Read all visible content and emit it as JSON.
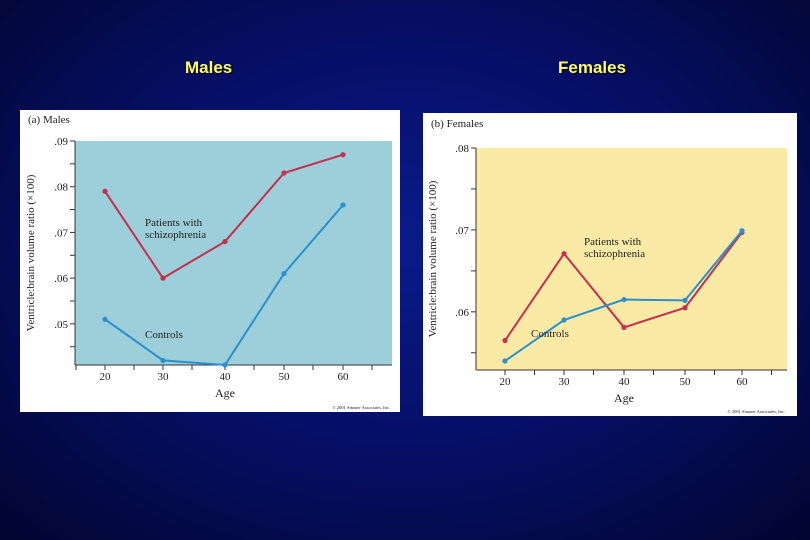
{
  "slide": {
    "left_title": "Males",
    "right_title": "Females"
  },
  "chart_data": [
    {
      "type": "line",
      "panel_label": "(a) Males",
      "title": "Males",
      "xlabel": "Age",
      "ylabel": "Ventricle:brain volume ratio (×100)",
      "x": [
        20,
        30,
        40,
        50,
        60
      ],
      "x_ticks": [
        "20",
        "30",
        "40",
        "50",
        "60"
      ],
      "y_ticks": [
        ".05",
        ".06",
        ".07",
        ".08",
        ".09"
      ],
      "xlim": [
        15,
        70
      ],
      "ylim": [
        0.041,
        0.09
      ],
      "background": "#9ccfd9",
      "series": [
        {
          "name": "Patients with schizophrenia",
          "color": "#c4304d",
          "values": [
            0.079,
            0.06,
            0.068,
            0.083,
            0.087
          ]
        },
        {
          "name": "Controls",
          "color": "#2990cf",
          "values": [
            0.051,
            0.042,
            0.041,
            0.061,
            0.076
          ]
        }
      ],
      "copyright": "© 2001 Sinauer Associates, Inc."
    },
    {
      "type": "line",
      "panel_label": "(b) Females",
      "title": "Females",
      "xlabel": "Age",
      "ylabel": "Ventricle:brain volume ratio (×100)",
      "x": [
        20,
        30,
        40,
        50,
        60
      ],
      "x_ticks": [
        "20",
        "30",
        "40",
        "50",
        "60"
      ],
      "y_ticks": [
        ".06",
        ".07",
        ".08"
      ],
      "xlim": [
        15,
        70
      ],
      "ylim": [
        0.0529,
        0.08
      ],
      "background": "#fbeaa6",
      "series": [
        {
          "name": "Patients with schizophrenia",
          "color": "#c4304d",
          "values": [
            0.0565,
            0.0671,
            0.0581,
            0.0605,
            0.0697
          ]
        },
        {
          "name": "Controls",
          "color": "#2990cf",
          "values": [
            0.054,
            0.059,
            0.0615,
            0.0614,
            0.0699
          ]
        }
      ],
      "copyright": "© 2001 Sinauer Associates, Inc."
    }
  ]
}
